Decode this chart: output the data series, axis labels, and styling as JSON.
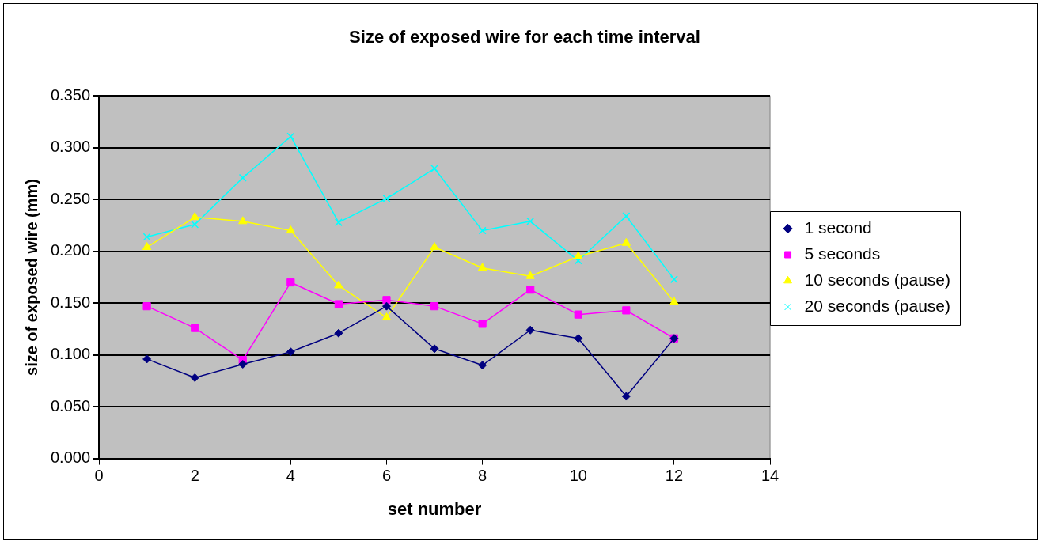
{
  "chart_data": {
    "type": "line",
    "title": "Size of exposed wire for each time interval",
    "xlabel": "set number",
    "ylabel": "size of exposed wire (mm)",
    "x": [
      1,
      2,
      3,
      4,
      5,
      6,
      7,
      8,
      9,
      10,
      11,
      12
    ],
    "xlim": [
      0,
      14
    ],
    "xticks": [
      0,
      2,
      4,
      6,
      8,
      10,
      12,
      14
    ],
    "ylim": [
      0,
      0.35
    ],
    "yticks": [
      {
        "value": 0,
        "label": "0.000"
      },
      {
        "value": 0.05,
        "label": "0.050"
      },
      {
        "value": 0.1,
        "label": "0.100"
      },
      {
        "value": 0.15,
        "label": "0.150"
      },
      {
        "value": 0.2,
        "label": "0.200"
      },
      {
        "value": 0.25,
        "label": "0.250"
      },
      {
        "value": 0.3,
        "label": "0.300"
      },
      {
        "value": 0.35,
        "label": "0.350"
      }
    ],
    "grid": "y",
    "legend": "right",
    "line_style": "solid",
    "series": [
      {
        "name": "1 second",
        "color": "#000080",
        "marker": "diamond",
        "values": [
          0.096,
          0.078,
          0.091,
          0.103,
          0.121,
          0.147,
          0.106,
          0.09,
          0.124,
          0.116,
          0.06,
          0.116
        ]
      },
      {
        "name": "5 seconds",
        "color": "#ff00ff",
        "marker": "square",
        "values": [
          0.147,
          0.126,
          0.095,
          0.17,
          0.149,
          0.153,
          0.147,
          0.13,
          0.163,
          0.139,
          0.143,
          0.116
        ]
      },
      {
        "name": "10 seconds (pause)",
        "color": "#ffff00",
        "marker": "triangle",
        "values": [
          0.204,
          0.233,
          0.229,
          0.22,
          0.167,
          0.136,
          0.204,
          0.184,
          0.176,
          0.195,
          0.208,
          0.151
        ]
      },
      {
        "name": "20 seconds (pause)",
        "color": "#00ffff",
        "marker": "cross",
        "values": [
          0.214,
          0.226,
          0.271,
          0.311,
          0.228,
          0.251,
          0.28,
          0.22,
          0.229,
          0.191,
          0.234,
          0.173
        ]
      }
    ]
  }
}
